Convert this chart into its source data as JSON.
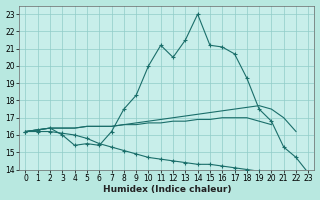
{
  "title": "",
  "xlabel": "Humidex (Indice chaleur)",
  "ylabel": "",
  "bg_color": "#b8e8e0",
  "plot_bg_color": "#c8eeea",
  "line_color": "#1a6e6a",
  "grid_color": "#90ccc8",
  "xlim": [
    -0.5,
    23.5
  ],
  "ylim": [
    14,
    23.5
  ],
  "xticks": [
    0,
    1,
    2,
    3,
    4,
    5,
    6,
    7,
    8,
    9,
    10,
    11,
    12,
    13,
    14,
    15,
    16,
    17,
    18,
    19,
    20,
    21,
    22,
    23
  ],
  "yticks": [
    14,
    15,
    16,
    17,
    18,
    19,
    20,
    21,
    22,
    23
  ],
  "line_main_x": [
    0,
    1,
    2,
    3,
    4,
    5,
    6,
    7,
    8,
    9,
    10,
    11,
    12,
    13,
    14,
    15,
    16,
    17,
    18,
    19,
    20,
    21,
    22,
    23
  ],
  "line_main_y": [
    16.2,
    16.3,
    16.4,
    16.0,
    15.4,
    15.5,
    15.4,
    16.2,
    17.5,
    18.3,
    20.0,
    21.2,
    20.5,
    21.5,
    23.0,
    21.2,
    21.1,
    20.7,
    19.3,
    17.5,
    16.8,
    15.3,
    14.7,
    13.8
  ],
  "line_upper1_x": [
    0,
    1,
    2,
    3,
    4,
    5,
    6,
    7,
    8,
    9,
    10,
    11,
    12,
    13,
    14,
    15,
    16,
    17,
    18,
    19,
    20,
    21,
    22
  ],
  "line_upper1_y": [
    16.2,
    16.3,
    16.4,
    16.4,
    16.4,
    16.5,
    16.5,
    16.5,
    16.6,
    16.7,
    16.8,
    16.9,
    17.0,
    17.1,
    17.2,
    17.3,
    17.4,
    17.5,
    17.6,
    17.7,
    17.5,
    17.0,
    16.2
  ],
  "line_upper2_x": [
    0,
    1,
    2,
    3,
    4,
    5,
    6,
    7,
    8,
    9,
    10,
    11,
    12,
    13,
    14,
    15,
    16,
    17,
    18,
    19,
    20
  ],
  "line_upper2_y": [
    16.2,
    16.3,
    16.4,
    16.4,
    16.4,
    16.5,
    16.5,
    16.5,
    16.6,
    16.6,
    16.7,
    16.7,
    16.8,
    16.8,
    16.9,
    16.9,
    17.0,
    17.0,
    17.0,
    16.8,
    16.6
  ],
  "line_lower_x": [
    0,
    1,
    2,
    3,
    4,
    5,
    6,
    7,
    8,
    9,
    10,
    11,
    12,
    13,
    14,
    15,
    16,
    17,
    18,
    19,
    20,
    21,
    22,
    23
  ],
  "line_lower_y": [
    16.2,
    16.2,
    16.2,
    16.1,
    16.0,
    15.8,
    15.5,
    15.3,
    15.1,
    14.9,
    14.7,
    14.6,
    14.5,
    14.4,
    14.3,
    14.3,
    14.2,
    14.1,
    14.0,
    13.9,
    13.8,
    13.8,
    13.8,
    13.8
  ]
}
